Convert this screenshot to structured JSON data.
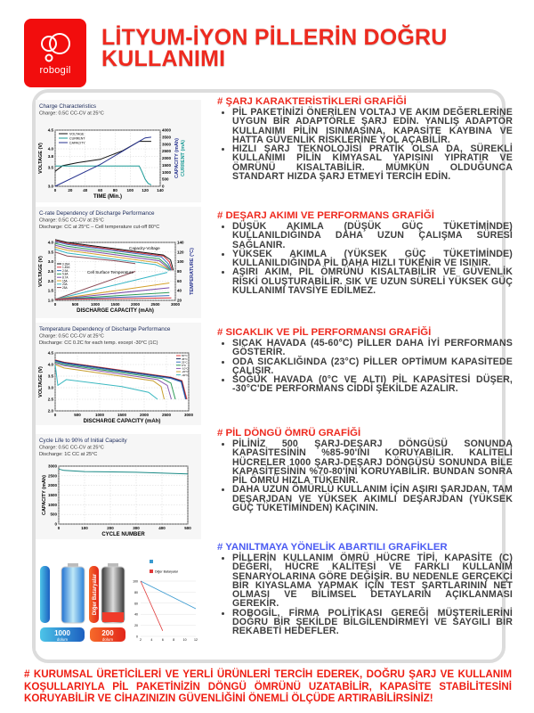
{
  "brand": {
    "logo_text": "robogil",
    "color": "#f20d0d"
  },
  "title": "LİTYUM-İYON PİLLERİN DOĞRU KULLANIMI",
  "sections": [
    {
      "heading": "#  ŞARJ KARAKTERİSTİKLERİ GRAFİĞİ",
      "color": "#ee2a1f",
      "bullets": [
        "PİL PAKETİNİZİ ÖNERİLEN VOLTAJ VE AKIM DEĞERLERİNE UYGUN BİR ADAPTÖRLE ŞARJ EDİN. YANLIŞ ADAPTÖR KULLANIMI PİLİN ISINMASINA, KAPASİTE KAYBINA VE HATTA GÜVENLİK RİSKLERİNE YOL AÇABİLİR.",
        "HIZLI ŞARJ TEKNOLOJİSİ PRATİK OLSA DA, SÜREKLİ KULLANIMI PİLİN KİMYASAL YAPISINI YIPRATIR VE ÖMRÜNÜ KISALTABİLİR. MÜMKÜN OLDUĞUNCA STANDART HIZDA ŞARJ ETMEYİ TERCİH EDİN."
      ]
    },
    {
      "heading": "#  DEŞARJ AKIMI VE PERFORMANS GRAFİĞİ",
      "color": "#ee2a1f",
      "bullets": [
        "DÜŞÜK AKIMLA (DÜŞÜK GÜÇ TÜKETİMİNDE) KULLANILDIĞINDA DAHA UZUN ÇALIŞMA SÜRESİ SAĞLANIR.",
        "YÜKSEK AKIMLA (YÜKSEK GÜÇ TÜKETİMİNDE) KULLANILDIĞINDA PİL DAHA HIZLI TÜKENİR VE ISINIR.",
        "AŞIRI AKIM, PİL ÖMRÜNÜ KISALTABİLİR VE GÜVENLİK RİSKİ OLUŞTURABİLİR. SIK VE UZUN SÜRELİ YÜKSEK GÜÇ KULLANIMI TAVSİYE EDİLMEZ."
      ]
    },
    {
      "heading": "#  SICAKLIK VE PİL PERFORMANSI GRAFİĞİ",
      "color": "#ee2a1f",
      "bullets": [
        "SICAK HAVADA (45-60°C) PİLLER DAHA İYİ PERFORMANS GÖSTERİR.",
        "ODA SICAKLIĞINDA (23°C) PİLLER OPTİMUM KAPASİTEDE ÇALIŞIR.",
        "SOĞUK HAVADA (0°C VE ALTI) PİL KAPASİTESİ DÜŞER, -30°C'DE PERFORMANS CİDDİ ŞEKİLDE AZALIR."
      ]
    },
    {
      "heading": "#  PİL DÖNGÜ ÖMRÜ GRAFİĞİ",
      "color": "#ee2a1f",
      "bullets": [
        "PİLİNİZ 500 ŞARJ-DEŞARJ DÖNGÜSÜ SONUNDA KAPASİTESİNİN %85-90'INI KORUYABİLİR. KALİTELİ HÜCRELER 1000 ŞARJ-DEŞARJ DÖNGÜSÜ SONUNDA BİLE KAPASİTESİNİN %70-80'İNİ KORUYABİLİR. BUNDAN SONRA PİL ÖMRÜ HIZLA TÜKENİR.",
        "DAHA UZUN ÖMÜRLÜ KULLANIM İÇİN AŞIRI ŞARJDAN, TAM DEŞARJDAN VE YÜKSEK AKIMLI DEŞARJDAN (YÜKSEK GÜÇ TÜKETİMİNDEN) KAÇININ."
      ]
    },
    {
      "heading": "#  YANILTMAYA YÖNELİK ABARTILI GRAFİKLER",
      "color": "#4b5bf2",
      "bullets": [
        "PİLLERİN KULLANIM ÖMRÜ HÜCRE TİPİ, KAPASİTE (C) DEĞERİ, HÜCRE KALİTESİ VE FARKLI KULLANIM SENARYOLARINA GÖRE DEĞİŞİR. BU NEDENLE GERÇEKÇİ BİR KIYASLAMA YAPMAK İÇİN TEST ŞARTLARININ NET OLMASI VE BİLİMSEL DETAYLARIN AÇIKLANMASI GEREKİR.",
        "ROBOGİL, FİRMA POLİTİKASI GEREĞİ MÜŞTERİLERİNİ DOĞRU BİR ŞEKİLDE BİLGİLENDİRMEYİ VE SAYGILI BİR REKABETİ HEDEFLER."
      ]
    }
  ],
  "footer": "#  KURUMSAL ÜRETİCİLERİ VE YERLİ ÜRÜNLERİ TERCİH EDEREK, DOĞRU ŞARJ VE KULLANIM KOŞULLARIYLA PİL PAKETİNİZİN DÖNGÜ ÖMRÜNÜ UZATABİLİR, KAPASİTE STABİLİTESİNİ KORUYABİLİR VE CİHAZINIZIN GÜVENLİĞİNİ ÖNEMLİ ÖLÇÜDE ARTIRABİLİRSİNİZ!",
  "charts": [
    {
      "title": "Charge Characteristics",
      "subtitles": [
        "Charge: 0.5C CC-CV at 25°C"
      ],
      "xlabel": "TIME (Min.)",
      "ylabel": "VOLTAGE (V)",
      "y2label": [
        "CAPACITY (mAh)",
        "CURRENT (mA)"
      ],
      "xlim": [
        0,
        140
      ],
      "ylim": [
        3.0,
        4.5
      ],
      "y2lim": [
        0,
        4000
      ],
      "xticks": [
        0,
        20,
        40,
        60,
        80,
        100,
        120,
        140
      ],
      "yticks": [
        3.0,
        3.5,
        3.8,
        4.0,
        4.5
      ],
      "y2ticks": [
        0,
        500,
        1000,
        1500,
        2000,
        2500,
        3000,
        3500,
        4000
      ],
      "series": [
        {
          "name": "VOLTAGE",
          "axis": "y",
          "color": "#111111",
          "points": [
            [
              0,
              3.4
            ],
            [
              10,
              3.55
            ],
            [
              30,
              3.63
            ],
            [
              60,
              3.72
            ],
            [
              90,
              3.95
            ],
            [
              112,
              4.2
            ],
            [
              128,
              4.2
            ]
          ]
        },
        {
          "name": "CURRENT",
          "axis": "y2",
          "color": "#1a9a96",
          "points": [
            [
              0,
              1450
            ],
            [
              112,
              1450
            ],
            [
              116,
              1000
            ],
            [
              120,
              500
            ],
            [
              124,
              200
            ],
            [
              128,
              100
            ]
          ]
        },
        {
          "name": "CAPACITY",
          "axis": "y2",
          "color": "#27338f",
          "points": [
            [
              0,
              0
            ],
            [
              60,
              1550
            ],
            [
              112,
              3200
            ],
            [
              120,
              3450
            ],
            [
              128,
              3500
            ]
          ]
        }
      ]
    },
    {
      "title": "C-rate Dependency of Discharge Performance",
      "subtitles": [
        "Charge: 0.5C CC-CV at 25°C",
        "Discharge: CC at 25°C – Cell temperature cut-off 80°C"
      ],
      "xlabel": "DISCHARGE CAPACITY (mAh)",
      "ylabel": "VOLTAGE (V)",
      "y2label": [
        "TEMPERATURE (°C)"
      ],
      "xlim": [
        0,
        3000
      ],
      "ylim": [
        1.0,
        4.0
      ],
      "y2lim": [
        20,
        140
      ],
      "xticks": [
        0,
        500,
        1000,
        1500,
        2000,
        2500,
        3000
      ],
      "yticks": [
        1.0,
        1.5,
        2.0,
        2.5,
        3.0,
        3.5,
        4.0
      ],
      "y2ticks": [
        20,
        40,
        60,
        80,
        100,
        120,
        140
      ],
      "annotations": [
        "Capacity-Voltage",
        "Cell Surface Temperature"
      ],
      "series": [
        {
          "name": "0.39A",
          "axis": "y",
          "color": "#111111",
          "points": [
            [
              0,
              4.15
            ],
            [
              300,
              4.0
            ],
            [
              2700,
              3.35
            ],
            [
              2880,
              3.1
            ],
            [
              2950,
              2.55
            ]
          ]
        },
        {
          "name": "1.45A",
          "axis": "y",
          "color": "#d0303a",
          "points": [
            [
              0,
              4.1
            ],
            [
              300,
              3.95
            ],
            [
              2700,
              3.3
            ],
            [
              2850,
              3.0
            ],
            [
              2920,
              2.55
            ]
          ]
        },
        {
          "name": "2.9A",
          "axis": "y",
          "color": "#3a6fc0",
          "points": [
            [
              0,
              4.05
            ],
            [
              300,
              3.9
            ],
            [
              2650,
              3.25
            ],
            [
              2820,
              2.9
            ],
            [
              2900,
              2.55
            ]
          ]
        },
        {
          "name": "5.8A",
          "axis": "y",
          "color": "#2e9a57",
          "points": [
            [
              0,
              3.95
            ],
            [
              300,
              3.8
            ],
            [
              2600,
              3.15
            ],
            [
              2800,
              2.8
            ],
            [
              2880,
              2.55
            ]
          ]
        },
        {
          "name": "8.7A",
          "axis": "y",
          "color": "#7a4aa8",
          "points": [
            [
              0,
              3.85
            ],
            [
              300,
              3.7
            ],
            [
              2600,
              3.05
            ],
            [
              2780,
              2.75
            ],
            [
              2860,
              2.55
            ]
          ]
        },
        {
          "name": "15A",
          "axis": "y",
          "color": "#d4a12a",
          "points": [
            [
              0,
              3.75
            ],
            [
              300,
              3.6
            ],
            [
              2550,
              2.95
            ],
            [
              2760,
              2.7
            ],
            [
              2850,
              2.55
            ]
          ]
        },
        {
          "name": "20A",
          "axis": "y",
          "color": "#33b5c4",
          "points": [
            [
              0,
              3.65
            ],
            [
              300,
              3.45
            ],
            [
              2500,
              2.85
            ],
            [
              2750,
              2.65
            ],
            [
              2840,
              2.55
            ]
          ]
        },
        {
          "name": "25A",
          "axis": "y",
          "color": "#8a4a55",
          "points": [
            [
              0,
              3.5
            ],
            [
              300,
              3.3
            ],
            [
              1500,
              3.05
            ],
            [
              2000,
              2.9
            ]
          ]
        },
        {
          "name": "",
          "axis": "y2",
          "color": "#8a4a55",
          "points": [
            [
              0,
              22
            ],
            [
              2000,
              80
            ]
          ]
        },
        {
          "name": "",
          "axis": "y2",
          "color": "#33b5c4",
          "points": [
            [
              0,
              22
            ],
            [
              2800,
              78
            ]
          ]
        },
        {
          "name": "",
          "axis": "y2",
          "color": "#d4a12a",
          "points": [
            [
              0,
              22
            ],
            [
              2850,
              56
            ]
          ]
        },
        {
          "name": "",
          "axis": "y2",
          "color": "#7a4aa8",
          "points": [
            [
              0,
              22
            ],
            [
              2850,
              46
            ]
          ]
        },
        {
          "name": "",
          "axis": "y2",
          "color": "#2e9a57",
          "points": [
            [
              0,
              22
            ],
            [
              2850,
              36
            ]
          ]
        },
        {
          "name": "",
          "axis": "y2",
          "color": "#3a6fc0",
          "points": [
            [
              0,
              22
            ],
            [
              2850,
              30
            ]
          ]
        },
        {
          "name": "",
          "axis": "y2",
          "color": "#d0303a",
          "points": [
            [
              0,
              22
            ],
            [
              2900,
              25
            ]
          ]
        }
      ]
    },
    {
      "title": "Temperature Dependency of Discharge Performance",
      "subtitles": [
        "Charge: 0.5C CC-CV at 25°C",
        "Discharge: CC 0.2C for each temp. except -30°C (1C)"
      ],
      "xlabel": "DISCHARGE CAPACITY (mAh)",
      "ylabel": "VOLTAGE (V)",
      "xlim": [
        0,
        3000
      ],
      "ylim": [
        2.0,
        4.5
      ],
      "xticks": [
        0,
        500,
        1000,
        1500,
        2000,
        2500,
        3000
      ],
      "yticks": [
        2.0,
        2.5,
        3.0,
        3.5,
        4.0,
        4.5
      ],
      "series": [
        {
          "name": "60°C",
          "axis": "y",
          "color": "#e03a3a",
          "points": [
            [
              0,
              4.2
            ],
            [
              200,
              4.1
            ],
            [
              2600,
              3.45
            ],
            [
              2850,
              3.3
            ],
            [
              2960,
              2.5
            ]
          ]
        },
        {
          "name": "45°C",
          "axis": "y",
          "color": "#1b2a5a",
          "points": [
            [
              0,
              4.18
            ],
            [
              200,
              4.08
            ],
            [
              2600,
              3.43
            ],
            [
              2840,
              3.28
            ],
            [
              2940,
              2.5
            ]
          ]
        },
        {
          "name": "25°C",
          "axis": "y",
          "color": "#3a6fc0",
          "points": [
            [
              0,
              4.15
            ],
            [
              200,
              4.05
            ],
            [
              2600,
              3.4
            ],
            [
              2830,
              3.25
            ],
            [
              2930,
              2.5
            ]
          ]
        },
        {
          "name": "0°C",
          "axis": "y",
          "color": "#2e9a57",
          "points": [
            [
              0,
              4.1
            ],
            [
              200,
              4.0
            ],
            [
              2400,
              3.4
            ],
            [
              2600,
              3.2
            ],
            [
              2700,
              2.5
            ]
          ]
        },
        {
          "name": "-10°C",
          "axis": "y",
          "color": "#8a5ab0",
          "points": [
            [
              0,
              4.05
            ],
            [
              200,
              3.95
            ],
            [
              2300,
              3.35
            ],
            [
              2520,
              3.1
            ],
            [
              2610,
              2.5
            ]
          ]
        },
        {
          "name": "-20°C",
          "axis": "y",
          "color": "#c9a030",
          "points": [
            [
              0,
              4.0
            ],
            [
              200,
              3.85
            ],
            [
              2200,
              3.3
            ],
            [
              2380,
              3.05
            ],
            [
              2450,
              2.5
            ]
          ]
        },
        {
          "name": "-30°C",
          "axis": "y",
          "color": "#3ab8c0",
          "points": [
            [
              0,
              4.0
            ],
            [
              60,
              3.1
            ],
            [
              250,
              3.35
            ],
            [
              1500,
              3.05
            ],
            [
              2100,
              2.8
            ],
            [
              2300,
              2.5
            ]
          ]
        }
      ]
    },
    {
      "title": "Cycle Life to 90% of Initial Capacity",
      "subtitles": [
        "Charge: 0.5C CC-CV at 25°C",
        "Discharge: 1C CC at 25°C"
      ],
      "xlabel": "CYCLE NUMBER",
      "ylabel": "CAPACITY (mAh)",
      "xlim": [
        0,
        500
      ],
      "ylim": [
        0,
        3000
      ],
      "xticks": [
        0,
        100,
        200,
        300,
        400,
        500
      ],
      "yticks": [
        0,
        500,
        1000,
        1500,
        2000,
        2500,
        3000
      ],
      "series": [
        {
          "name": "",
          "axis": "y",
          "color": "#1a8a86",
          "points": [
            [
              0,
              2850
            ],
            [
              20,
              2780
            ],
            [
              100,
              2720
            ],
            [
              300,
              2680
            ],
            [
              500,
              2600
            ]
          ]
        }
      ]
    }
  ],
  "comparison": {
    "ours": {
      "number": "1000",
      "unit": "dolum",
      "color": "#2a8ed8"
    },
    "other": {
      "label": "Diğer Bataryalar",
      "number": "200",
      "unit": "dolum",
      "color": "#ee4422"
    },
    "mini_chart": {
      "xlim": [
        2,
        12
      ],
      "ylim": [
        0,
        100
      ],
      "xticks": [
        2,
        4,
        6,
        8,
        10,
        12
      ],
      "yticks": [
        0,
        20,
        40,
        60,
        80,
        100
      ],
      "series": [
        {
          "name": "",
          "color": "#3a9ad0",
          "points": [
            [
              2,
              100
            ],
            [
              12,
              50
            ]
          ]
        },
        {
          "name": "Diğer Bataryalar",
          "color": "#e03a3a",
          "points": [
            [
              2,
              100
            ],
            [
              6,
              10
            ]
          ]
        }
      ]
    }
  }
}
